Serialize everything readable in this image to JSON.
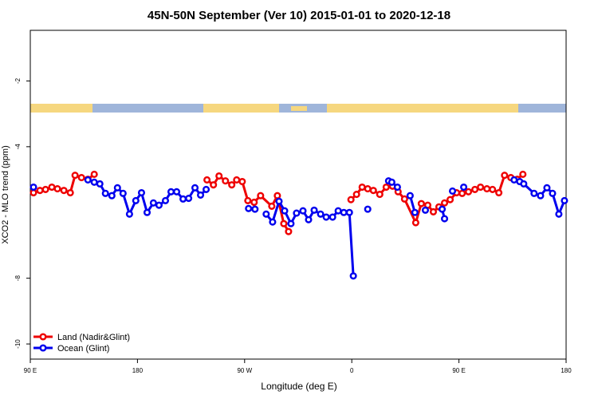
{
  "chart_data": {
    "type": "line",
    "title": "45N-50N September (Ver 10)   2015-01-01 to 2020-12-18",
    "xlabel": "Longitude (deg E)",
    "ylabel": "XCO2 - MLO trend (ppm)",
    "xlim": [
      90,
      540
    ],
    "ylim": [
      -10.46,
      -0.46
    ],
    "xticks": [
      {
        "value": 90,
        "label": "90 E"
      },
      180,
      {
        "value": 270,
        "label": "90 W"
      },
      {
        "value": 360,
        "label": "0"
      },
      {
        "value": 450,
        "label": "90 E"
      },
      {
        "value": 540,
        "label": "180"
      }
    ],
    "yticks": [
      -2,
      -4,
      -8,
      -10
    ],
    "legend": "bottom-left",
    "series": [
      {
        "name": "Land (Nadir&Glint)",
        "color": "#ee0000",
        "x": [
          92.7,
          98.1,
          102.8,
          108.1,
          112.8,
          118.2,
          123.6,
          127.6,
          133.0,
          138.4,
          143.7,
          null,
          238.4,
          243.8,
          248.5,
          253.9,
          259.2,
          263.3,
          268.0,
          272.7,
          278.0,
          283.4,
          292.8,
          297.5,
          302.9,
          306.9,
          null,
          359.3,
          364.0,
          368.7,
          373.4,
          378.1,
          383.5,
          388.9,
          394.2,
          398.9,
          404.3,
          413.7,
          418.4,
          423.8,
          428.5,
          433.2,
          437.9,
          442.6,
          448.0,
          452.7,
          458.0,
          463.4,
          468.1,
          473.5,
          478.2,
          483.5,
          488.3,
          493.6,
          499.0,
          503.7
        ],
        "values": [
          -5.4,
          -5.33,
          -5.3,
          -5.23,
          -5.28,
          -5.33,
          -5.4,
          -4.87,
          -4.94,
          -4.99,
          -4.84,
          null,
          -5.01,
          -5.16,
          -4.89,
          -5.04,
          -5.16,
          -5.01,
          -5.06,
          -5.64,
          -5.69,
          -5.49,
          -5.81,
          -5.49,
          -6.34,
          -6.58,
          null,
          -5.61,
          -5.45,
          -5.23,
          -5.28,
          -5.33,
          -5.45,
          -5.23,
          -5.2,
          -5.37,
          -5.59,
          -6.31,
          -5.73,
          -5.78,
          -5.98,
          -5.83,
          -5.71,
          -5.61,
          -5.4,
          -5.42,
          -5.37,
          -5.3,
          -5.23,
          -5.28,
          -5.3,
          -5.4,
          -4.87,
          -4.94,
          -4.99,
          -4.84
        ]
      },
      {
        "name": "Ocean (Glint)",
        "color": "#0000ee",
        "x": [
          92.7,
          null,
          138.4,
          143.7,
          148.4,
          153.1,
          158.5,
          163.2,
          167.9,
          173.3,
          178.6,
          183.4,
          188.1,
          193.4,
          198.1,
          203.5,
          208.2,
          212.9,
          218.3,
          223.0,
          228.3,
          233.0,
          237.7,
          null,
          273.3,
          278.7,
          null,
          288.1,
          293.5,
          298.9,
          303.6,
          308.9,
          313.6,
          319.0,
          323.7,
          328.4,
          333.8,
          338.5,
          343.9,
          348.6,
          353.3,
          358.0,
          361.3,
          null,
          373.4,
          null,
          390.9,
          393.6,
          398.3,
          null,
          409.0,
          413.0,
          null,
          421.8,
          null,
          435.9,
          437.9,
          null,
          444.6,
          null,
          454.0,
          null,
          496.3,
          501.0,
          504.4,
          513.1,
          518.5,
          523.9,
          528.6,
          533.9,
          538.6
        ],
        "values": [
          -5.23,
          null,
          -5.01,
          -5.08,
          -5.13,
          -5.42,
          -5.49,
          -5.25,
          -5.42,
          -6.05,
          -5.64,
          -5.4,
          -6.0,
          -5.71,
          -5.78,
          -5.64,
          -5.37,
          -5.37,
          -5.59,
          -5.57,
          -5.25,
          -5.47,
          -5.3,
          null,
          -5.88,
          -5.9,
          null,
          -6.05,
          -6.29,
          -5.66,
          -5.95,
          -6.34,
          -6.02,
          -5.95,
          -6.22,
          -5.93,
          -6.05,
          -6.14,
          -6.14,
          -5.95,
          -6.0,
          -6.0,
          -7.93,
          null,
          -5.9,
          null,
          -5.04,
          -5.08,
          -5.23,
          null,
          -5.49,
          -6.0,
          null,
          -5.93,
          null,
          -5.9,
          -6.19,
          null,
          -5.35,
          null,
          -5.23,
          null,
          -5.01,
          -5.06,
          -5.13,
          -5.42,
          -5.49,
          -5.25,
          -5.42,
          -6.05,
          -5.64
        ]
      }
    ]
  }
}
